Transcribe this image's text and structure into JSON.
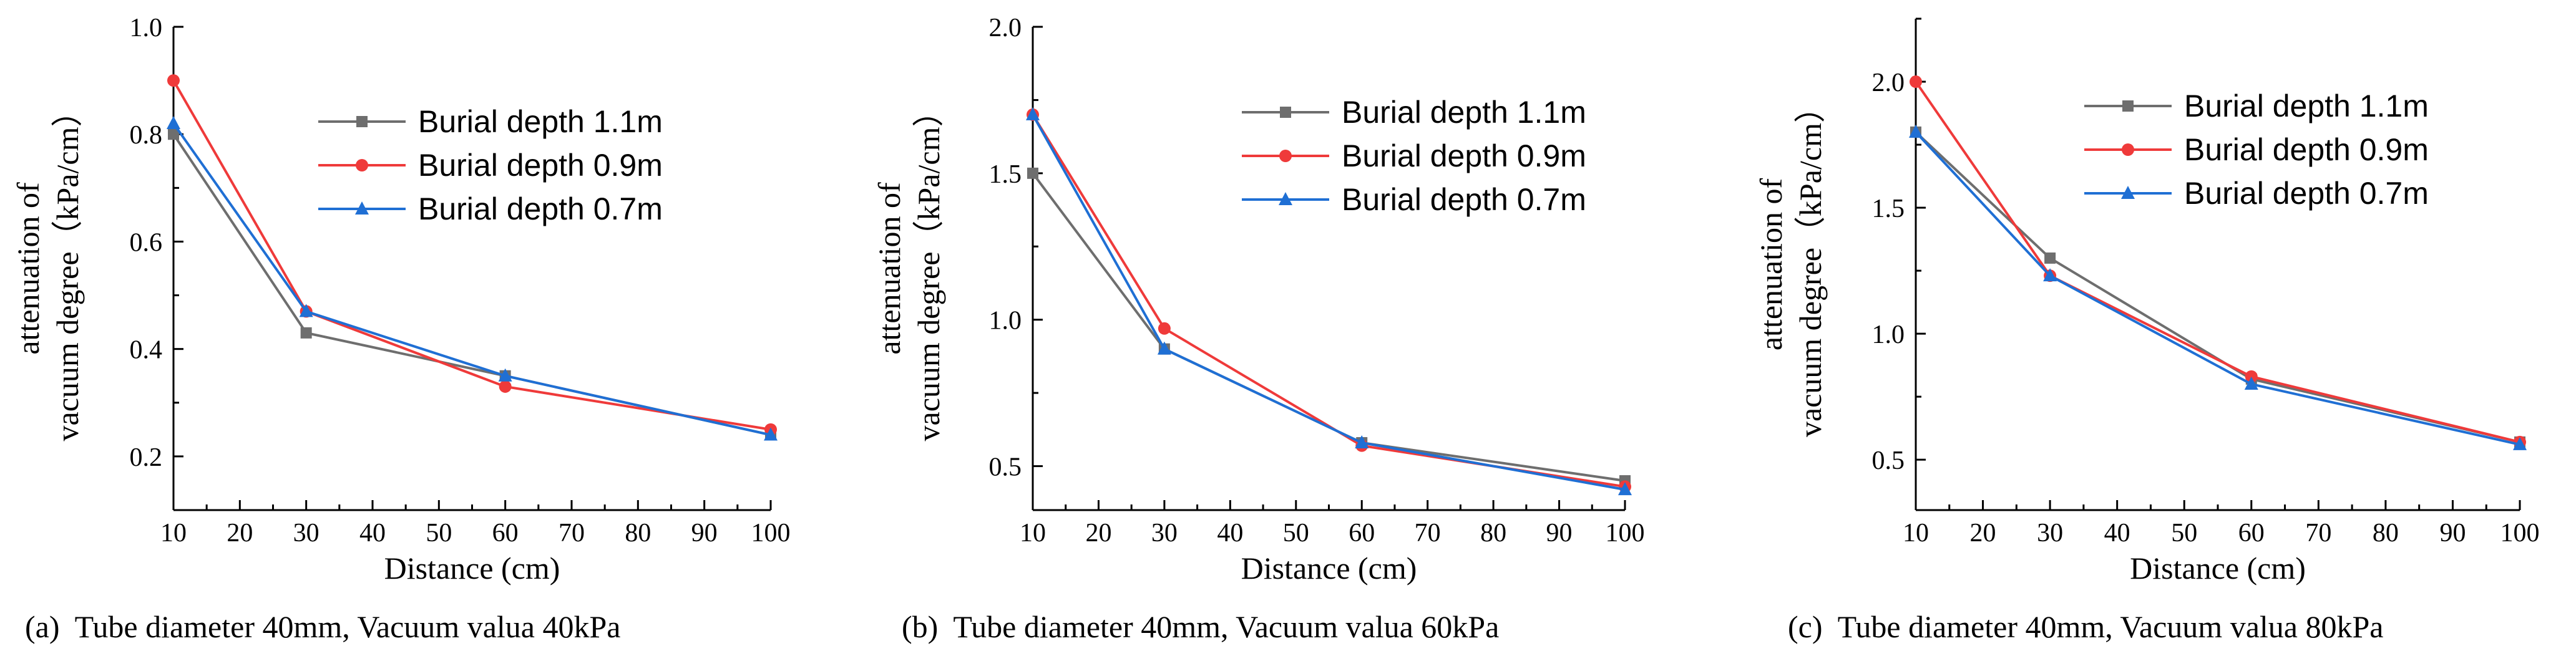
{
  "chart_data": [
    {
      "type": "line",
      "caption": "(a)  Tube diameter 40mm, Vacuum valua 40kPa",
      "xlabel": "Distance (cm)",
      "ylabel_line1": "attenuation of",
      "ylabel_line2": "vacuum degree（kPa/cm）",
      "xlim": [
        10,
        100
      ],
      "ylim": [
        0.1,
        1.0
      ],
      "xticks": [
        10,
        20,
        30,
        40,
        50,
        60,
        70,
        80,
        90,
        100
      ],
      "xtick_labels": [
        "10",
        "20",
        "30",
        "40",
        "50",
        "60",
        "70",
        "80",
        "90",
        "100"
      ],
      "yticks": [
        0.2,
        0.4,
        0.6,
        0.8,
        1.0
      ],
      "ytick_labels": [
        "0.2",
        "0.4",
        "0.6",
        "0.8",
        "1.0"
      ],
      "legend_position": "top-right",
      "series": [
        {
          "name": "Burial depth 1.1m",
          "color": "#6e6e6e",
          "marker": "square",
          "x": [
            10,
            30,
            60,
            100
          ],
          "values": [
            0.8,
            0.43,
            0.35,
            0.24
          ]
        },
        {
          "name": "Burial depth 0.9m",
          "color": "#ef3a3a",
          "marker": "circle",
          "x": [
            10,
            30,
            60,
            100
          ],
          "values": [
            0.9,
            0.47,
            0.33,
            0.25
          ]
        },
        {
          "name": "Burial depth 0.7m",
          "color": "#1f6fd4",
          "marker": "triangle",
          "x": [
            10,
            30,
            60,
            100
          ],
          "values": [
            0.82,
            0.47,
            0.35,
            0.24
          ]
        }
      ]
    },
    {
      "type": "line",
      "caption": "(b)  Tube diameter 40mm, Vacuum valua 60kPa",
      "xlabel": "Distance (cm)",
      "ylabel_line1": "attenuation of",
      "ylabel_line2": "vacuum degree（kPa/cm）",
      "xlim": [
        10,
        100
      ],
      "ylim": [
        0.35,
        2.0
      ],
      "xticks": [
        10,
        20,
        30,
        40,
        50,
        60,
        70,
        80,
        90,
        100
      ],
      "xtick_labels": [
        "10",
        "20",
        "30",
        "40",
        "50",
        "60",
        "70",
        "80",
        "90",
        "100"
      ],
      "yticks": [
        0.5,
        1.0,
        1.5,
        2.0
      ],
      "ytick_labels": [
        "0.5",
        "1.0",
        "1.5",
        "2.0"
      ],
      "legend_position": "top-right",
      "series": [
        {
          "name": "Burial depth 1.1m",
          "color": "#6e6e6e",
          "marker": "square",
          "x": [
            10,
            30,
            60,
            100
          ],
          "values": [
            1.5,
            0.9,
            0.58,
            0.45
          ]
        },
        {
          "name": "Burial depth 0.9m",
          "color": "#ef3a3a",
          "marker": "circle",
          "x": [
            10,
            30,
            60,
            100
          ],
          "values": [
            1.7,
            0.97,
            0.57,
            0.43
          ]
        },
        {
          "name": "Burial depth 0.7m",
          "color": "#1f6fd4",
          "marker": "triangle",
          "x": [
            10,
            30,
            60,
            100
          ],
          "values": [
            1.7,
            0.9,
            0.58,
            0.42
          ]
        }
      ]
    },
    {
      "type": "line",
      "caption": "(c)  Tube diameter 40mm, Vacuum valua 80kPa",
      "xlabel": "Distance (cm)",
      "ylabel_line1": "attenuation of",
      "ylabel_line2": "vacuum degree（kPa/cm）",
      "xlim": [
        10,
        100
      ],
      "ylim": [
        0.3,
        2.25
      ],
      "xticks": [
        10,
        20,
        30,
        40,
        50,
        60,
        70,
        80,
        90,
        100
      ],
      "xtick_labels": [
        "10",
        "20",
        "30",
        "40",
        "50",
        "60",
        "70",
        "80",
        "90",
        "100"
      ],
      "yticks": [
        0.5,
        1.0,
        1.5,
        2.0
      ],
      "ytick_labels": [
        "0.5",
        "1.0",
        "1.5",
        "2.0"
      ],
      "legend_position": "top-right",
      "series": [
        {
          "name": "Burial depth 1.1m",
          "color": "#6e6e6e",
          "marker": "square",
          "x": [
            10,
            30,
            60,
            100
          ],
          "values": [
            1.8,
            1.3,
            0.82,
            0.57
          ]
        },
        {
          "name": "Burial depth 0.9m",
          "color": "#ef3a3a",
          "marker": "circle",
          "x": [
            10,
            30,
            60,
            100
          ],
          "values": [
            2.0,
            1.23,
            0.83,
            0.57
          ]
        },
        {
          "name": "Burial depth 0.7m",
          "color": "#1f6fd4",
          "marker": "triangle",
          "x": [
            10,
            30,
            60,
            100
          ],
          "values": [
            1.8,
            1.23,
            0.8,
            0.56
          ]
        }
      ]
    }
  ]
}
